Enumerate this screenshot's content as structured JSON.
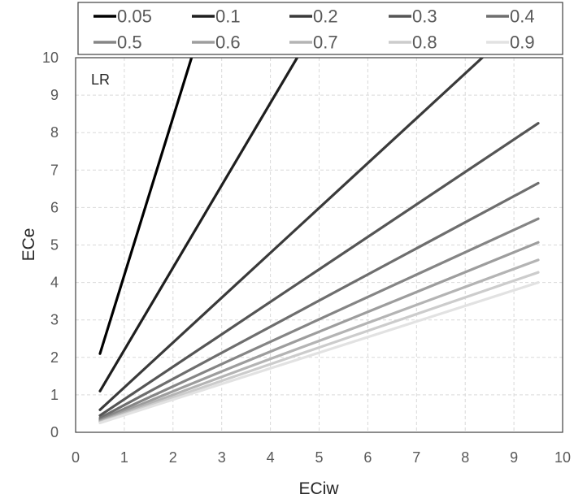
{
  "chart_data": {
    "type": "line",
    "title": "",
    "xlabel": "ECiw",
    "ylabel": "ECe",
    "xlim": [
      0,
      10
    ],
    "ylim": [
      0,
      10
    ],
    "xticks": [
      "0",
      "1",
      "2",
      "3",
      "4",
      "5",
      "6",
      "7",
      "8",
      "9",
      "10"
    ],
    "yticks": [
      "0",
      "1",
      "2",
      "3",
      "4",
      "5",
      "6",
      "7",
      "8",
      "9",
      "10"
    ],
    "grid": true,
    "legend_position": "top",
    "annotation": "LR",
    "series": [
      {
        "name": "0.05",
        "color": "#000000",
        "x": [
          0.5,
          2.38
        ],
        "y": [
          2.1,
          10
        ]
      },
      {
        "name": "0.1",
        "color": "#1f1f1f",
        "x": [
          0.5,
          4.55
        ],
        "y": [
          1.1,
          10
        ]
      },
      {
        "name": "0.2",
        "color": "#3a3a3a",
        "x": [
          0.5,
          8.35
        ],
        "y": [
          0.6,
          10
        ]
      },
      {
        "name": "0.3",
        "color": "#555555",
        "x": [
          0.5,
          9.5
        ],
        "y": [
          0.45,
          8.25
        ]
      },
      {
        "name": "0.4",
        "color": "#6e6e6e",
        "x": [
          0.5,
          9.5
        ],
        "y": [
          0.38,
          6.65
        ]
      },
      {
        "name": "0.5",
        "color": "#858585",
        "x": [
          0.5,
          9.5
        ],
        "y": [
          0.33,
          5.7
        ]
      },
      {
        "name": "0.6",
        "color": "#9d9d9d",
        "x": [
          0.5,
          9.5
        ],
        "y": [
          0.3,
          5.07
        ]
      },
      {
        "name": "0.7",
        "color": "#b4b4b4",
        "x": [
          0.5,
          9.5
        ],
        "y": [
          0.28,
          4.6
        ]
      },
      {
        "name": "0.8",
        "color": "#cccccc",
        "x": [
          0.5,
          9.5
        ],
        "y": [
          0.26,
          4.27
        ]
      },
      {
        "name": "0.9",
        "color": "#e2e2e2",
        "x": [
          0.5,
          9.5
        ],
        "y": [
          0.25,
          4.0
        ]
      }
    ]
  }
}
